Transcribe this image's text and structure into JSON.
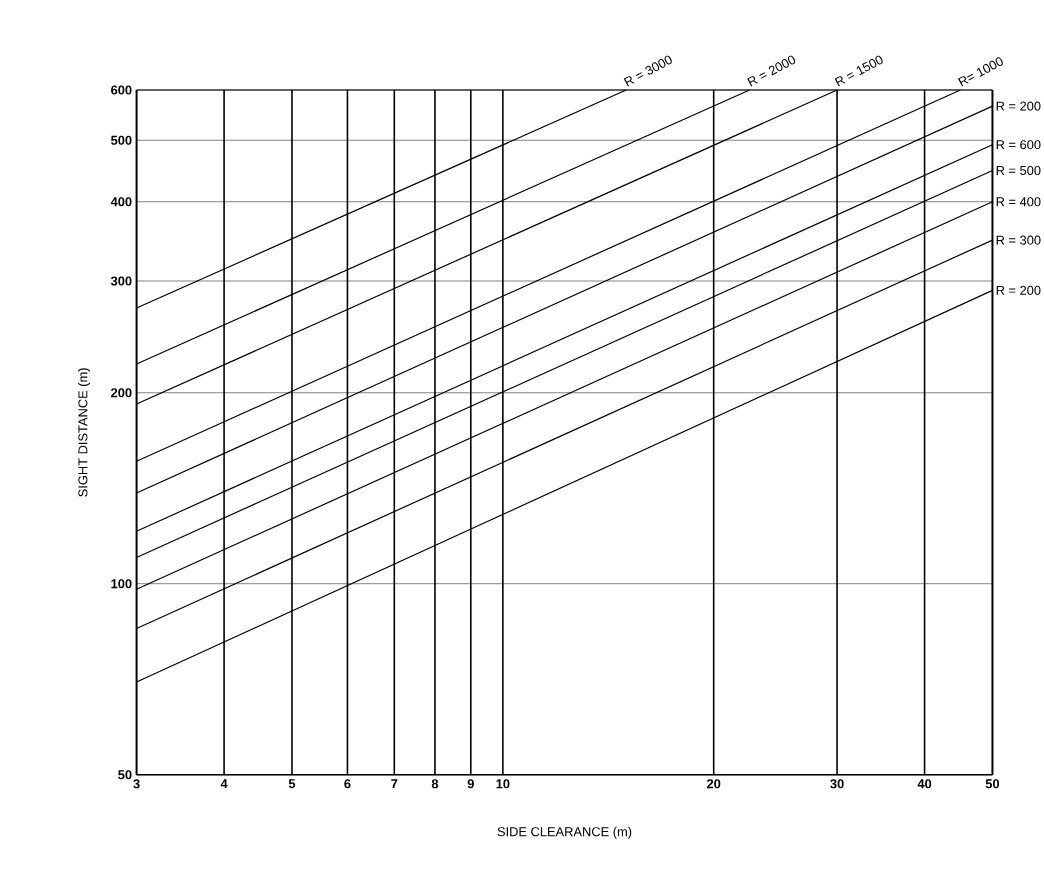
{
  "chart_data": {
    "type": "line",
    "xlabel": "SIDE CLEARANCE (m)",
    "ylabel": "SIGHT DISTANCE (m)",
    "log": "xy",
    "grid": true,
    "marker": "none",
    "line_style": "solid",
    "xlim": [
      3,
      50
    ],
    "ylim": [
      50,
      600
    ],
    "xticks": [
      3,
      4,
      5,
      6,
      7,
      8,
      9,
      10,
      20,
      30,
      40,
      50
    ],
    "yticks": [
      50,
      100,
      200,
      300,
      400,
      500,
      600
    ],
    "series": [
      {
        "name": "R = 3000",
        "color": "#000000",
        "x": [
          3,
          15
        ],
        "values": [
          272,
          600
        ]
      },
      {
        "name": "R = 2000",
        "color": "#000000",
        "x": [
          3,
          22.5
        ],
        "values": [
          222,
          600
        ]
      },
      {
        "name": "R = 1500",
        "color": "#000000",
        "x": [
          3,
          30
        ],
        "values": [
          192,
          600
        ]
      },
      {
        "name": "R= 1000",
        "color": "#000000",
        "x": [
          3,
          45
        ],
        "values": [
          156,
          600
        ]
      },
      {
        "name": "R = 200",
        "color": "#000000",
        "x": [
          3,
          50
        ],
        "values": [
          139,
          566
        ]
      },
      {
        "name": "R = 600",
        "color": "#000000",
        "x": [
          3,
          50
        ],
        "values": [
          121,
          492
        ]
      },
      {
        "name": "R = 500",
        "color": "#000000",
        "x": [
          3,
          50
        ],
        "values": [
          110,
          448
        ]
      },
      {
        "name": "R = 400",
        "color": "#000000",
        "x": [
          3,
          50
        ],
        "values": [
          98,
          400
        ]
      },
      {
        "name": "R = 300",
        "color": "#000000",
        "x": [
          3,
          50
        ],
        "values": [
          85,
          348
        ]
      },
      {
        "name": "R = 200",
        "color": "#000000",
        "x": [
          3,
          50
        ],
        "values": [
          70,
          290
        ]
      }
    ]
  }
}
